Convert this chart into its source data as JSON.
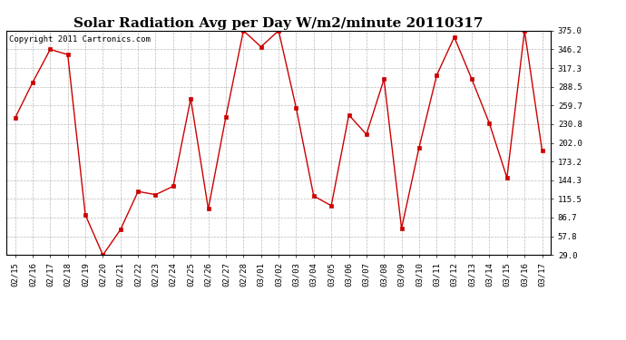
{
  "title": "Solar Radiation Avg per Day W/m2/minute 20110317",
  "copyright": "Copyright 2011 Cartronics.com",
  "labels": [
    "02/15",
    "02/16",
    "02/17",
    "02/18",
    "02/19",
    "02/20",
    "02/21",
    "02/22",
    "02/23",
    "02/24",
    "02/25",
    "02/26",
    "02/27",
    "02/28",
    "03/01",
    "03/02",
    "03/03",
    "03/04",
    "03/05",
    "03/06",
    "03/07",
    "03/08",
    "03/09",
    "03/10",
    "03/11",
    "03/12",
    "03/13",
    "03/14",
    "03/15",
    "03/16",
    "03/17"
  ],
  "values": [
    240,
    295,
    346,
    338,
    91,
    29,
    68,
    127,
    122,
    135,
    270,
    100,
    242,
    375,
    350,
    375,
    256,
    120,
    105,
    245,
    215,
    300,
    70,
    195,
    306,
    365,
    300,
    232,
    148,
    375,
    190
  ],
  "line_color": "#cc0000",
  "marker": "s",
  "marker_size": 3,
  "ylim": [
    29.0,
    375.0
  ],
  "yticks": [
    29.0,
    57.8,
    86.7,
    115.5,
    144.3,
    173.2,
    202.0,
    230.8,
    259.7,
    288.5,
    317.3,
    346.2,
    375.0
  ],
  "bg_color": "#ffffff",
  "grid_color": "#aaaaaa",
  "title_fontsize": 11,
  "tick_fontsize": 6.5,
  "copyright_fontsize": 6.5
}
